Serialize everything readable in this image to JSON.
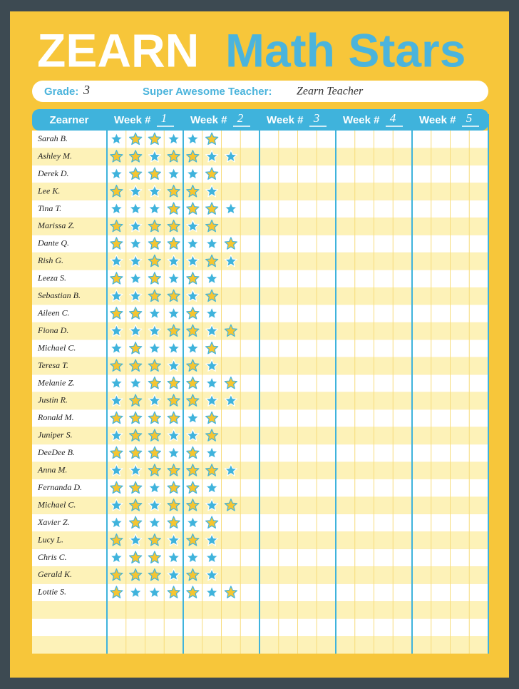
{
  "header": {
    "logo": "ZEARN",
    "title": "Math Stars"
  },
  "info": {
    "grade_label": "Grade:",
    "grade": "3",
    "teacher_label": "Super Awesome Teacher:",
    "teacher": "Zearn Teacher"
  },
  "table": {
    "name_header": "Zearner",
    "weeks": [
      {
        "label": "Week #",
        "number": "1"
      },
      {
        "label": "Week #",
        "number": "2"
      },
      {
        "label": "Week #",
        "number": "3"
      },
      {
        "label": "Week #",
        "number": "4"
      },
      {
        "label": "Week #",
        "number": "5"
      }
    ],
    "star_colors": {
      "b": "#3fb3dc",
      "y": "#f6c531"
    },
    "rows": [
      {
        "name": "Sarah B.",
        "stars": "byybby"
      },
      {
        "name": "Ashley M.",
        "stars": "yybyybb"
      },
      {
        "name": "Derek D.",
        "stars": "byybby"
      },
      {
        "name": "Lee K.",
        "stars": "ybbyyb"
      },
      {
        "name": "Tina T.",
        "stars": "bbbyyyb"
      },
      {
        "name": "Marissa Z.",
        "stars": "ybyyby"
      },
      {
        "name": "Dante Q.",
        "stars": "ybyybby"
      },
      {
        "name": "Rish G.",
        "stars": "bbybbyb"
      },
      {
        "name": "Leeza S.",
        "stars": "ybybyb"
      },
      {
        "name": "Sebastian B.",
        "stars": "bbyyby"
      },
      {
        "name": "Aileen C.",
        "stars": "yybbyb"
      },
      {
        "name": "Fiona D.",
        "stars": "bbbyyby"
      },
      {
        "name": "Michael C.",
        "stars": "bybbby"
      },
      {
        "name": "Teresa T.",
        "stars": "yyybyb"
      },
      {
        "name": "Melanie Z.",
        "stars": "bbyyyby"
      },
      {
        "name": "Justin R.",
        "stars": "bybyybb"
      },
      {
        "name": "Ronald M.",
        "stars": "yyyyby"
      },
      {
        "name": "Juniper S.",
        "stars": "byybby"
      },
      {
        "name": "DeeDee B.",
        "stars": "yyybyb"
      },
      {
        "name": "Anna M.",
        "stars": "bbyyyyb"
      },
      {
        "name": "Fernanda D.",
        "stars": "yybyyb"
      },
      {
        "name": "Michael C.",
        "stars": "bybyyby"
      },
      {
        "name": "Xavier Z.",
        "stars": "bybyby"
      },
      {
        "name": "Lucy L.",
        "stars": "ybybyb"
      },
      {
        "name": "Chris C.",
        "stars": "byybbb"
      },
      {
        "name": "Gerald K.",
        "stars": "yyybyb"
      },
      {
        "name": "Lottie S.",
        "stars": "ybbyyby"
      }
    ]
  }
}
